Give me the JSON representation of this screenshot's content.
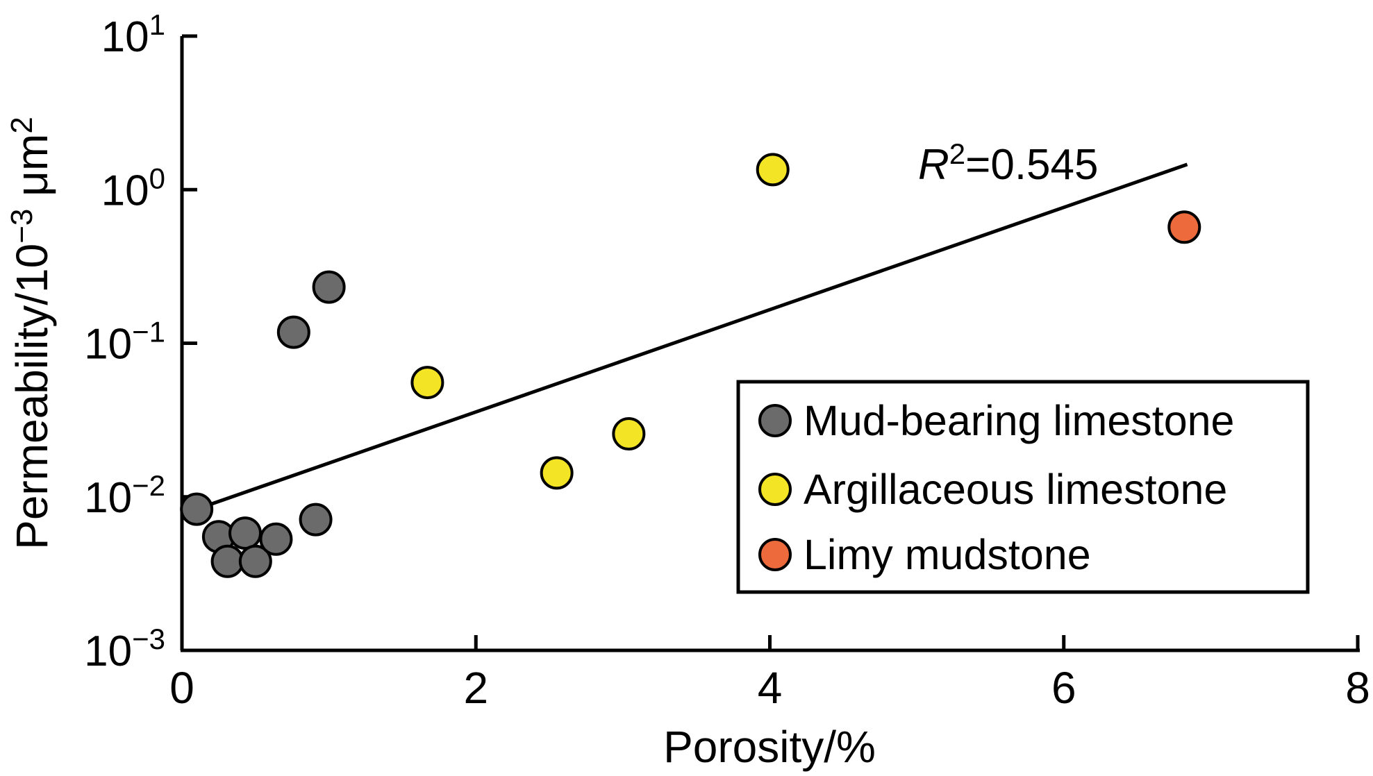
{
  "chart_data": {
    "type": "scatter",
    "title": "",
    "xlabel": "Porosity/%",
    "ylabel_text": "Permeability/10−3 μm2 (−3 and 2 are superscripts)",
    "ylabel": {
      "p0": "Permeability/10",
      "s1": "−3",
      "p1": " μm",
      "s2": "2"
    },
    "x_axis": {
      "min": 0,
      "max": 8,
      "tick_values": [
        0,
        2,
        4,
        6,
        8
      ],
      "tick_labels": [
        "0",
        "2",
        "4",
        "6",
        "8"
      ],
      "tick_mark_values": [
        2,
        4,
        6,
        8
      ]
    },
    "y_axis": {
      "scale": "log",
      "min": 0.001,
      "max": 10,
      "base": "10",
      "tick_exponent_labels": [
        "1",
        "0",
        "−1",
        "−2",
        "−3"
      ],
      "tick_exponent_values": [
        1,
        0,
        -1,
        -2,
        -3
      ],
      "tick_mark_exponent_values": [
        1,
        0,
        -1,
        -2
      ]
    },
    "grid": false,
    "legend_position": "lower right",
    "series": [
      {
        "name": "Mud-bearing limestone",
        "color": "#6B6B6B",
        "points": [
          [
            0.1,
            0.0083
          ],
          [
            0.25,
            0.0055
          ],
          [
            0.31,
            0.0038
          ],
          [
            0.43,
            0.0058
          ],
          [
            0.5,
            0.0038
          ],
          [
            0.64,
            0.0053
          ],
          [
            0.76,
            0.118
          ],
          [
            0.91,
            0.0071
          ],
          [
            1.0,
            0.232
          ]
        ]
      },
      {
        "name": "Argillaceous limestone",
        "color": "#F3E426",
        "points": [
          [
            1.67,
            0.0555
          ],
          [
            2.55,
            0.0143
          ],
          [
            3.04,
            0.0257
          ],
          [
            4.02,
            1.35
          ]
        ]
      },
      {
        "name": "Limy mudstone",
        "color": "#EC6A3C",
        "points": [
          [
            6.82,
            0.57
          ]
        ]
      }
    ],
    "trendline": {
      "x1": 0.0,
      "y1": 0.0077,
      "x2": 6.84,
      "y2": 1.46,
      "color": "#000000",
      "r_squared": 0.545
    },
    "annotation": {
      "italic": "R",
      "sup": "2",
      "rest": "=0.545"
    }
  }
}
